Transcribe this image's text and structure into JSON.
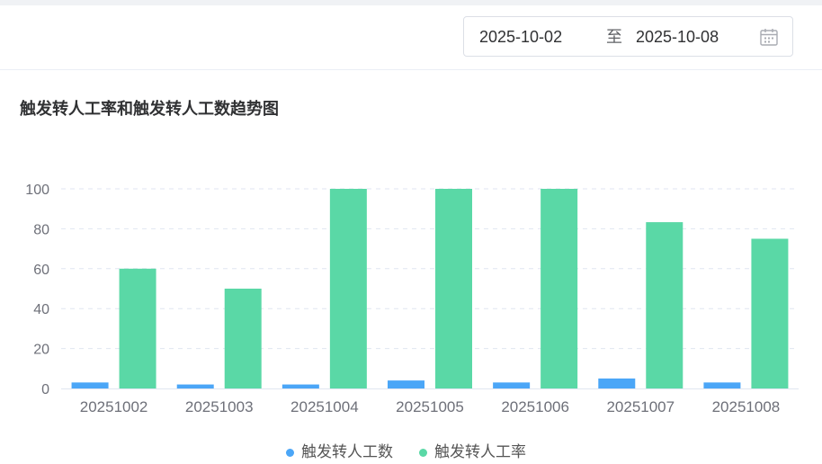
{
  "date_range": {
    "start": "2025-10-02",
    "separator": "至",
    "end": "2025-10-08",
    "icon": "calendar-icon"
  },
  "chart_title": "触发转人工率和触发转人工数趋势图",
  "chart_data": {
    "type": "bar",
    "title": "触发转人工率和触发转人工数趋势图",
    "categories": [
      "20251002",
      "20251003",
      "20251004",
      "20251005",
      "20251006",
      "20251007",
      "20251008"
    ],
    "series": [
      {
        "name": "触发转人工数",
        "color": "#4ba6f7",
        "values": [
          3,
          2,
          2,
          4,
          3,
          5,
          3
        ]
      },
      {
        "name": "触发转人工率",
        "color": "#5ad8a6",
        "values": [
          60,
          50,
          100,
          100,
          100,
          83.3,
          75
        ]
      }
    ],
    "yticks": [
      0,
      20,
      40,
      60,
      80,
      100
    ],
    "ylim": [
      0,
      100
    ],
    "grid": true,
    "legend_position": "bottom-center"
  }
}
